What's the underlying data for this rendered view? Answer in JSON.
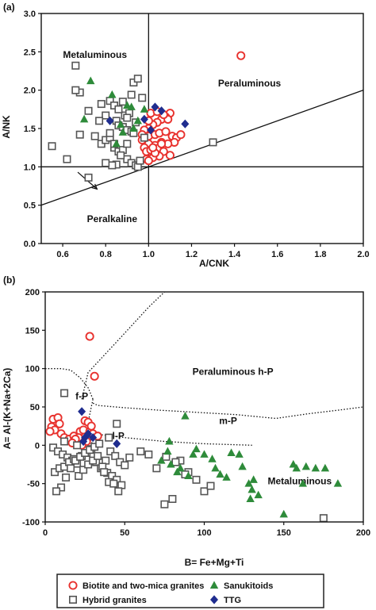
{
  "chart_data": [
    {
      "panel_label": "(a)",
      "type": "scatter",
      "xlabel": "A/CNK",
      "ylabel": "A/NK",
      "xlim": [
        0.5,
        2.0
      ],
      "ylim": [
        0.0,
        3.0
      ],
      "xticks": [
        "0.6",
        "0.8",
        "1.0",
        "1.2",
        "1.4",
        "1.6",
        "1.8",
        "2.0"
      ],
      "xtick_values": [
        0.6,
        0.8,
        1.0,
        1.2,
        1.4,
        1.6,
        1.8,
        2.0
      ],
      "yticks": [
        "0.0",
        "0.5",
        "1.0",
        "1.5",
        "2.0",
        "2.5",
        "3.0"
      ],
      "ytick_values": [
        0.0,
        0.5,
        1.0,
        1.5,
        2.0,
        2.5,
        3.0
      ],
      "regions": [
        {
          "text": "Metaluminous",
          "x": 0.75,
          "y": 2.42
        },
        {
          "text": "Peraluminous",
          "x": 1.47,
          "y": 2.05
        },
        {
          "text": "Peralkaline",
          "x": 0.83,
          "y": 0.28
        }
      ],
      "boundary_lines": [
        {
          "x": [
            1.0,
            1.0
          ],
          "y": [
            0.0,
            3.0
          ]
        },
        {
          "x": [
            0.5,
            2.0
          ],
          "y": [
            1.0,
            1.0
          ]
        },
        {
          "x": [
            0.5,
            2.0
          ],
          "y": [
            0.5,
            2.0
          ]
        }
      ],
      "arrow": {
        "x": [
          0.67,
          0.76
        ],
        "y": [
          0.93,
          0.71
        ]
      },
      "series": [
        {
          "name": "Biotite and two-mica granites",
          "marker": "open-circle",
          "color": "#e8322e",
          "x": [
            1.43,
            1.1,
            1.08,
            1.06,
            1.04,
            1.02,
            1.0,
            0.98,
            0.97,
            1.0,
            1.03,
            1.05,
            1.08,
            1.11,
            1.13,
            1.15,
            1.12,
            1.09,
            1.06,
            1.03,
            1.0,
            0.98,
            0.99,
            1.01,
            1.04,
            1.07,
            1.1,
            1.05,
            1.02,
            0.99,
            1.0,
            1.03,
            1.06,
            1.09,
            1.01,
            1.04,
            1.07,
            0.97,
            1.0,
            1.02
          ],
          "y": [
            2.45,
            1.7,
            1.65,
            1.62,
            1.58,
            1.55,
            1.5,
            1.48,
            1.42,
            1.4,
            1.42,
            1.44,
            1.46,
            1.4,
            1.38,
            1.42,
            1.32,
            1.3,
            1.32,
            1.28,
            1.3,
            1.25,
            1.2,
            1.22,
            1.24,
            1.2,
            1.15,
            1.14,
            1.12,
            1.1,
            1.08,
            1.18,
            1.3,
            1.62,
            1.7,
            1.72,
            1.68,
            1.35,
            1.6,
            1.25
          ]
        },
        {
          "name": "Hybrid granites",
          "marker": "open-square",
          "color": "#555555",
          "x": [
            0.66,
            0.55,
            0.62,
            0.68,
            0.72,
            0.75,
            0.78,
            0.8,
            0.82,
            0.84,
            0.85,
            0.86,
            0.88,
            0.9,
            0.92,
            0.93,
            0.78,
            0.8,
            0.82,
            0.84,
            0.86,
            0.88,
            0.9,
            0.92,
            0.94,
            0.95,
            0.96,
            0.9,
            0.85,
            0.83,
            0.87,
            0.89,
            0.91,
            0.93,
            0.95,
            0.82,
            0.86,
            0.9,
            0.94,
            0.97,
            0.72,
            0.66,
            0.68,
            1.3,
            0.92,
            0.88,
            0.8,
            0.77,
            0.84,
            0.98
          ],
          "y": [
            2.32,
            1.27,
            1.1,
            1.97,
            1.73,
            1.4,
            1.82,
            1.67,
            1.86,
            1.8,
            1.6,
            1.54,
            1.52,
            1.48,
            1.46,
            1.44,
            1.3,
            1.35,
            1.38,
            1.25,
            1.2,
            1.22,
            1.1,
            1.05,
            1.02,
            1.0,
            1.08,
            1.3,
            1.03,
            1.02,
            1.15,
            1.67,
            1.7,
            2.1,
            2.15,
            1.44,
            1.75,
            1.64,
            1.58,
            1.9,
            0.86,
            2.0,
            1.42,
            1.32,
            1.94,
            1.85,
            1.05,
            1.6,
            1.3,
            1.38
          ]
        },
        {
          "name": "Sanukitoids",
          "marker": "filled-triangle",
          "color": "#2e8b3a",
          "x": [
            0.73,
            0.7,
            0.85,
            0.87,
            0.9,
            0.92,
            0.83,
            0.95,
            0.88,
            0.93,
            0.98
          ],
          "y": [
            2.12,
            1.62,
            1.3,
            1.55,
            1.8,
            1.78,
            1.94,
            1.6,
            1.45,
            1.5,
            1.75
          ]
        },
        {
          "name": "TTG",
          "marker": "filled-diamond",
          "color": "#1f2d8f",
          "x": [
            0.82,
            1.03,
            1.17,
            1.06,
            0.98,
            1.01
          ],
          "y": [
            1.6,
            1.78,
            1.56,
            1.73,
            1.62,
            1.48
          ]
        }
      ]
    },
    {
      "panel_label": "(b)",
      "type": "scatter",
      "xlabel": "B= Fe+Mg+Ti",
      "ylabel": "A= Al-(K+Na+2Ca)",
      "xlim": [
        0,
        200
      ],
      "ylim": [
        -100,
        200
      ],
      "xticks": [
        "0",
        "50",
        "100",
        "150",
        "200"
      ],
      "xtick_values": [
        0,
        50,
        100,
        150,
        200
      ],
      "yticks": [
        "-100",
        "-50",
        "0",
        "50",
        "100",
        "150",
        "200"
      ],
      "ytick_values": [
        -100,
        -50,
        0,
        50,
        100,
        150,
        200
      ],
      "regions": [
        {
          "text": "Peraluminous h-P",
          "x": 118,
          "y": 92
        },
        {
          "text": "f-P",
          "x": 23,
          "y": 60
        },
        {
          "text": "m-P",
          "x": 115,
          "y": 28
        },
        {
          "text": "l-P",
          "x": 46,
          "y": 8
        },
        {
          "text": "Metaluminous",
          "x": 160,
          "y": -51
        }
      ],
      "dotted_curves": [
        {
          "x": [
            23,
            27,
            45,
            65,
            75
          ],
          "y": [
            60,
            95,
            135,
            180,
            200
          ]
        },
        {
          "x": [
            0,
            10,
            16,
            22,
            27,
            30
          ],
          "y": [
            100,
            100,
            98,
            88,
            75,
            60
          ]
        },
        {
          "x": [
            30,
            33,
            50,
            70,
            95,
            120,
            145,
            165,
            185,
            200
          ],
          "y": [
            55,
            52,
            49,
            46,
            43,
            40,
            35,
            41,
            46,
            50
          ]
        },
        {
          "x": [
            30,
            29,
            28,
            27,
            27,
            28,
            30
          ],
          "y": [
            60,
            50,
            40,
            30,
            20,
            10,
            0
          ]
        },
        {
          "x": [
            30,
            50,
            75,
            100,
            130
          ],
          "y": [
            15,
            10,
            5,
            2,
            0
          ]
        }
      ],
      "series": [
        {
          "name": "Biotite and two-mica granites",
          "marker": "open-circle",
          "color": "#e8322e",
          "x": [
            28,
            31,
            5,
            8,
            9,
            4,
            6,
            3,
            10,
            12,
            15,
            18,
            20,
            22,
            25,
            27,
            24,
            21,
            28,
            30,
            26,
            23,
            19,
            33,
            29,
            17
          ],
          "y": [
            142,
            90,
            34,
            36,
            28,
            24,
            20,
            18,
            15,
            10,
            8,
            12,
            5,
            18,
            32,
            30,
            20,
            10,
            18,
            15,
            5,
            0,
            8,
            12,
            25,
            3
          ]
        },
        {
          "name": "Hybrid granites",
          "marker": "open-square",
          "color": "#555555",
          "x": [
            12,
            45,
            5,
            8,
            11,
            14,
            17,
            20,
            23,
            26,
            29,
            32,
            35,
            38,
            41,
            44,
            47,
            50,
            53,
            6,
            9,
            12,
            15,
            18,
            21,
            24,
            27,
            30,
            33,
            36,
            39,
            42,
            45,
            48,
            10,
            13,
            16,
            19,
            22,
            25,
            28,
            31,
            34,
            37,
            40,
            43,
            46,
            7,
            60,
            65,
            70,
            75,
            80,
            85,
            90,
            95,
            100,
            104,
            88,
            82,
            76,
            175,
            12,
            20,
            40
          ],
          "y": [
            68,
            28,
            -3,
            -8,
            -12,
            -16,
            -20,
            -24,
            -14,
            -10,
            -5,
            -22,
            -30,
            -20,
            -8,
            -14,
            -22,
            -26,
            -16,
            -35,
            -30,
            -28,
            -22,
            -18,
            -40,
            -32,
            -25,
            -20,
            -14,
            -28,
            -36,
            -40,
            -45,
            -52,
            -55,
            -42,
            -30,
            -20,
            -15,
            -10,
            -6,
            -2,
            2,
            -35,
            -48,
            -50,
            -60,
            -60,
            -8,
            -12,
            -30,
            -77,
            -70,
            -20,
            -35,
            -45,
            -60,
            -53,
            -38,
            -22,
            -15,
            -95,
            5,
            0,
            10
          ]
        },
        {
          "name": "Sanukitoids",
          "marker": "filled-triangle",
          "color": "#2e8b3a",
          "x": [
            88,
            77,
            73,
            79,
            83,
            85,
            90,
            93,
            95,
            100,
            105,
            107,
            110,
            114,
            117,
            122,
            124,
            128,
            130,
            134,
            150,
            156,
            158,
            162,
            164,
            170,
            176,
            184,
            129,
            131,
            78
          ],
          "y": [
            38,
            -8,
            -20,
            -25,
            -35,
            -30,
            -40,
            -12,
            -5,
            -12,
            -18,
            -30,
            -38,
            -42,
            -10,
            -12,
            -28,
            -50,
            -58,
            -65,
            -90,
            -25,
            -30,
            -50,
            -28,
            -30,
            -30,
            -50,
            -70,
            -45,
            5
          ]
        },
        {
          "name": "TTG",
          "marker": "filled-diamond",
          "color": "#1f2d8f",
          "x": [
            23,
            25,
            45,
            30,
            27,
            24
          ],
          "y": [
            44,
            10,
            2,
            10,
            15,
            5
          ]
        }
      ]
    }
  ],
  "legend": {
    "items": [
      {
        "label": "Biotite and two-mica granites",
        "marker": "open-circle",
        "color": "#e8322e"
      },
      {
        "label": "Sanukitoids",
        "marker": "filled-triangle",
        "color": "#2e8b3a"
      },
      {
        "label": "Hybrid granites",
        "marker": "open-square",
        "color": "#555555"
      },
      {
        "label": "TTG",
        "marker": "filled-diamond",
        "color": "#1f2d8f"
      }
    ]
  }
}
